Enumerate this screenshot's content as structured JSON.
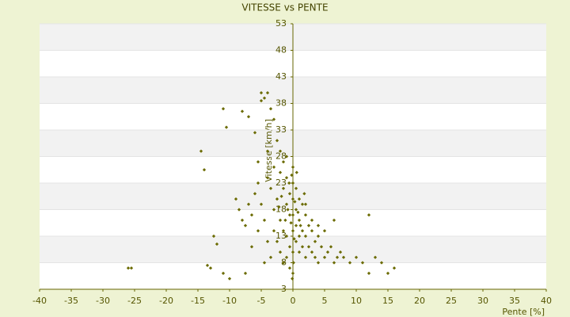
{
  "chart_data": {
    "type": "scatter",
    "title": "VITESSE vs PENTE",
    "xlabel": "Pente [%]",
    "ylabel": "Vitesse [km/h]",
    "color": "#6b6b00",
    "grid": true,
    "xlim": [
      -40,
      40
    ],
    "xticks": [
      -40,
      -35,
      -30,
      -25,
      -20,
      -15,
      -10,
      -5,
      0,
      5,
      10,
      15,
      20,
      25,
      30,
      35,
      40
    ],
    "ylim": [
      3,
      53
    ],
    "yticks": [
      3,
      8,
      13,
      18,
      23,
      28,
      33,
      38,
      43,
      48,
      53
    ],
    "x": [
      -26,
      -25.5,
      -14.5,
      -14,
      -13.5,
      -13,
      -12.5,
      -12,
      -11,
      -11,
      -10.5,
      -10,
      -8,
      -7,
      -6,
      -5,
      -5,
      -4.5,
      -4,
      -3.5,
      -3,
      -2.5,
      -2,
      -1.5,
      -9,
      -8.5,
      -8,
      -7.5,
      -7,
      -6.5,
      -6,
      -5.5,
      -5,
      -4.5,
      -4,
      -3.5,
      -3,
      -3,
      -2.5,
      -2.5,
      -2,
      -2,
      -2,
      -1.5,
      -1.5,
      -1.5,
      -1,
      -1,
      -1,
      -1,
      -0.5,
      -0.5,
      -0.5,
      -0.5,
      0,
      0,
      0,
      0,
      0,
      0,
      0,
      0.5,
      0.5,
      0.5,
      0.5,
      1,
      1,
      1,
      1,
      1.5,
      1.5,
      1.5,
      2,
      2,
      2,
      2.5,
      2.5,
      3,
      3,
      3.5,
      3.5,
      4,
      4,
      4.5,
      5,
      5,
      5.5,
      6,
      6.5,
      7,
      7.5,
      8,
      9,
      10,
      11,
      12,
      12,
      13,
      14,
      15,
      16,
      6.5,
      -0.3,
      0.3,
      -0.8,
      0.8,
      -1.2,
      1.2,
      0.2,
      -0.2,
      0.1,
      -0.1,
      -4,
      -5.5,
      -6.5,
      -3.5,
      -7.5,
      -4.5,
      3,
      2,
      4,
      -1.8,
      -2.2,
      1.8,
      0.6,
      -0.6,
      -3,
      -4,
      -5.5,
      -1
    ],
    "values": [
      7,
      7,
      29,
      25.5,
      7.5,
      7,
      13,
      11.5,
      6,
      37,
      33.5,
      5,
      36.5,
      35.5,
      32.5,
      38.5,
      40,
      39,
      40,
      37,
      35,
      31,
      29,
      27,
      20,
      18,
      16,
      15,
      19,
      17,
      21,
      23,
      19,
      16,
      24,
      22,
      18,
      14,
      20,
      12,
      25,
      16,
      10,
      22,
      14,
      8,
      24,
      19,
      13,
      9,
      21,
      17,
      11,
      7,
      26,
      23,
      20,
      17,
      14,
      10,
      6,
      22,
      18,
      15,
      12,
      20,
      16,
      13,
      10,
      19,
      14,
      11,
      17,
      13,
      9,
      15,
      11,
      14,
      10,
      12,
      9,
      13,
      8,
      11,
      14,
      9,
      10,
      11,
      8,
      9,
      10,
      9,
      8,
      9,
      8,
      17,
      6,
      9,
      8,
      6,
      7,
      16,
      15.5,
      19.5,
      18,
      17.5,
      16,
      15,
      12.5,
      24.5,
      8,
      5,
      12,
      14,
      11,
      9,
      6,
      8,
      16,
      19,
      15,
      20.5,
      18.5,
      21,
      25,
      23,
      26,
      29,
      27,
      28
    ]
  }
}
